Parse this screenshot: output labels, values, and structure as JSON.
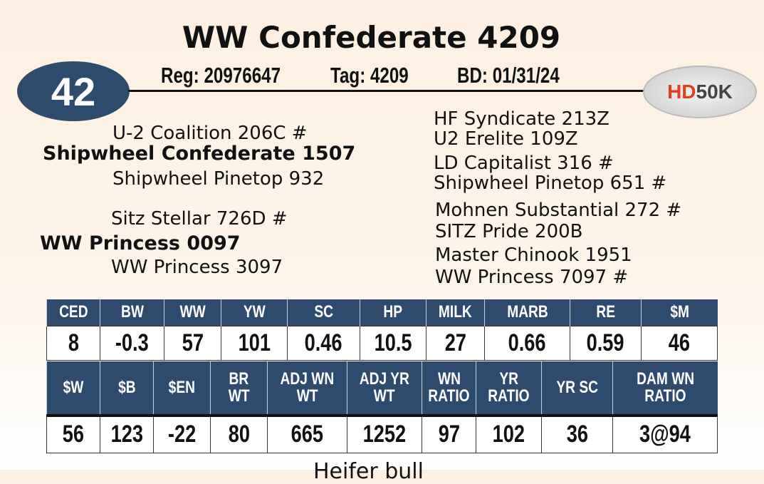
{
  "title": "WW Confederate 4209",
  "lot": "42",
  "reg": "Reg: 20976647",
  "tag": "Tag: 4209",
  "bd": "BD: 01/31/24",
  "logo": {
    "hd": "HD",
    "rest": "50K"
  },
  "pedigree": {
    "sire_sire": "U-2 Coalition 206C #",
    "sire": "Shipwheel Confederate 1507",
    "sire_dam": "Shipwheel Pinetop 932",
    "dam_sire": "Sitz Stellar 726D #",
    "dam": "WW Princess 0097",
    "dam_dam": "WW Princess 3097",
    "right": [
      "HF Syndicate 213Z",
      "U2 Erelite 109Z",
      "LD Capitalist 316 #",
      "Shipwheel Pinetop 651 #",
      "Mohnen Substantial 272 #",
      "SITZ Pride 200B",
      "Master Chinook 1951",
      "WW Princess 7097 #"
    ]
  },
  "epd1": {
    "headers": [
      "CED",
      "BW",
      "WW",
      "YW",
      "SC",
      "HP",
      "MILK",
      "MARB",
      "RE",
      "$M"
    ],
    "values": [
      "8",
      "-0.3",
      "57",
      "101",
      "0.46",
      "10.5",
      "27",
      "0.66",
      "0.59",
      "46"
    ]
  },
  "epd2": {
    "headers": [
      [
        "$W"
      ],
      [
        "$B"
      ],
      [
        "$EN"
      ],
      [
        "BR",
        "WT"
      ],
      [
        "ADJ WN",
        "WT"
      ],
      [
        "ADJ YR",
        "WT"
      ],
      [
        "WN",
        "RATIO"
      ],
      [
        "YR",
        "RATIO"
      ],
      [
        "YR SC"
      ],
      [
        "DAM WN",
        "RATIO"
      ]
    ],
    "values": [
      "56",
      "123",
      "-22",
      "80",
      "665",
      "1252",
      "97",
      "102",
      "36",
      "3@94"
    ]
  },
  "footer": "Heifer bull"
}
